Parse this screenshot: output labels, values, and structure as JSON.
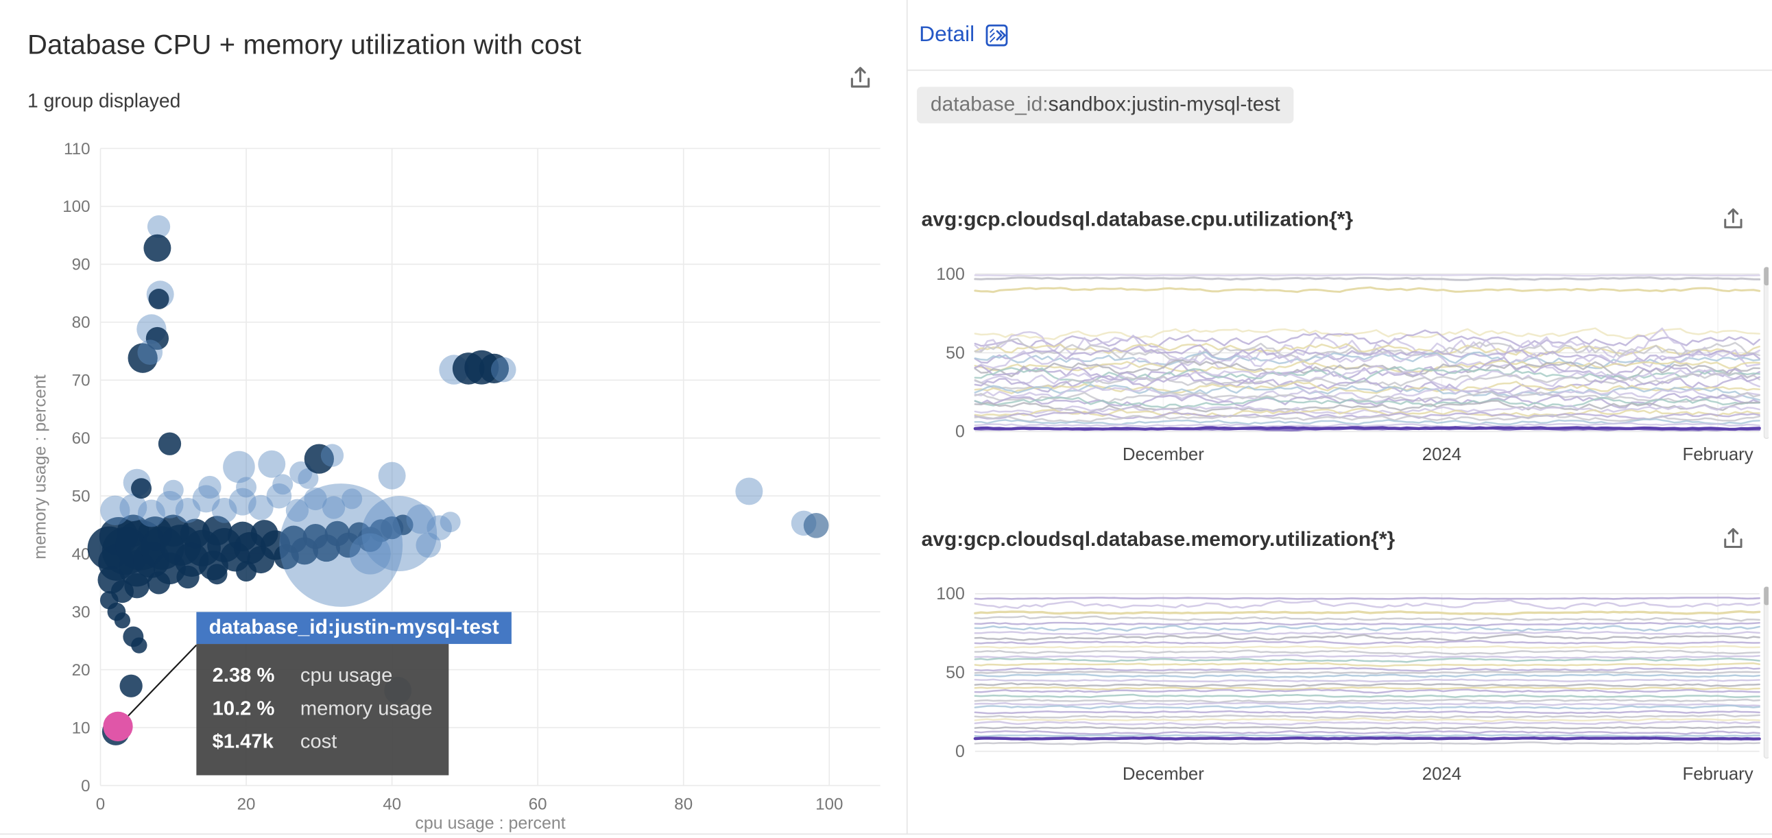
{
  "scatter": {
    "title": "Database CPU + memory utilization with cost",
    "subtitle": "1 group displayed"
  },
  "tooltip": {
    "title": "database_id:justin-mysql-test",
    "rows": [
      {
        "value": "2.38 %",
        "label": "cpu usage"
      },
      {
        "value": "10.2 %",
        "label": "memory usage"
      },
      {
        "value": "$1.47k",
        "label": "cost"
      }
    ]
  },
  "detail": {
    "label": "Detail",
    "tag_key": "database_id:",
    "tag_value": "sandbox:justin-mysql-test"
  },
  "colors": {
    "accent_blue": "#2457c5",
    "tooltip_header": "#4478c4",
    "highlight_pink": "#e056a8",
    "bubble_navy": "#0d3156",
    "bubble_steel": "#5d8cc2",
    "dark_purple_line": "#5b40ad"
  },
  "chart_data": [
    {
      "type": "scatter",
      "title": "Database CPU + memory utilization with cost",
      "xlabel": "cpu usage : percent",
      "ylabel": "memory usage : percent",
      "xlim": [
        0,
        107
      ],
      "ylim": [
        0,
        110
      ],
      "xticks": [
        0,
        20,
        40,
        60,
        80,
        100
      ],
      "yticks": [
        0,
        10,
        20,
        30,
        40,
        50,
        60,
        70,
        80,
        90,
        100,
        110
      ],
      "grid": true,
      "highlight_point": {
        "x": 2.38,
        "y": 10.2,
        "cost": "$1.47k",
        "group": "database_id:justin-mysql-test"
      },
      "palette": {
        "n": "#0d3156",
        "s": "#5d8cc2",
        "d": "#2f5d8f",
        "p": "#e056a8"
      },
      "points": [
        [
          1.2,
          41,
          19,
          "n"
        ],
        [
          2.2,
          38.5,
          16,
          "n"
        ],
        [
          2.5,
          43,
          17,
          "n"
        ],
        [
          3.5,
          40.5,
          21,
          "n"
        ],
        [
          4.5,
          44,
          14,
          "n"
        ],
        [
          5,
          37.5,
          16,
          "n"
        ],
        [
          5.5,
          41.5,
          22,
          "n"
        ],
        [
          7,
          39,
          16,
          "n"
        ],
        [
          7.5,
          43.5,
          15,
          "n"
        ],
        [
          8.5,
          41,
          19,
          "n"
        ],
        [
          9.5,
          37.5,
          14,
          "n"
        ],
        [
          10,
          44,
          14,
          "n"
        ],
        [
          11,
          41.5,
          18,
          "n"
        ],
        [
          12.5,
          39,
          15,
          "n"
        ],
        [
          13,
          43.5,
          13,
          "n"
        ],
        [
          14,
          41,
          16,
          "n"
        ],
        [
          15.5,
          38,
          13,
          "n"
        ],
        [
          16,
          44,
          13,
          "n"
        ],
        [
          17,
          41.5,
          15,
          "n"
        ],
        [
          18.5,
          39.5,
          13,
          "n"
        ],
        [
          19.5,
          43,
          13,
          "n"
        ],
        [
          20.5,
          41,
          14,
          "n"
        ],
        [
          22,
          39,
          12,
          "n"
        ],
        [
          22.5,
          43.5,
          12,
          "n"
        ],
        [
          24,
          41.5,
          13,
          "n"
        ],
        [
          25.5,
          39.5,
          11,
          "n"
        ],
        [
          26.5,
          42.5,
          12,
          "n"
        ],
        [
          28,
          40.5,
          12,
          "n"
        ],
        [
          29.5,
          43,
          11,
          "n"
        ],
        [
          31,
          41,
          12,
          "n"
        ],
        [
          32.5,
          43.5,
          11,
          "n"
        ],
        [
          34,
          41.5,
          11,
          "n"
        ],
        [
          35.5,
          43.5,
          10,
          "n"
        ],
        [
          37,
          42.5,
          11,
          "n"
        ],
        [
          38.5,
          44,
          10,
          "n"
        ],
        [
          40,
          44.5,
          10,
          "n"
        ],
        [
          41.5,
          45,
          9,
          "n"
        ],
        [
          1.5,
          35.5,
          12,
          "n"
        ],
        [
          3,
          33.5,
          10,
          "n"
        ],
        [
          5,
          34.5,
          11,
          "n"
        ],
        [
          8,
          35,
          10,
          "n"
        ],
        [
          12,
          36,
          10,
          "n"
        ],
        [
          16,
          36.5,
          9,
          "n"
        ],
        [
          20,
          37,
          9,
          "n"
        ],
        [
          1.2,
          32,
          8,
          "n"
        ],
        [
          2.2,
          30,
          8,
          "n"
        ],
        [
          3,
          28.5,
          7,
          "n"
        ],
        [
          2,
          47.5,
          13,
          "s"
        ],
        [
          4.5,
          48,
          12,
          "s"
        ],
        [
          7,
          47,
          12,
          "s"
        ],
        [
          9.5,
          48.5,
          12,
          "s"
        ],
        [
          12,
          47.5,
          11,
          "s"
        ],
        [
          14.5,
          49.5,
          12,
          "s"
        ],
        [
          17,
          47.5,
          11,
          "s"
        ],
        [
          19.5,
          49,
          12,
          "s"
        ],
        [
          22,
          48,
          11,
          "s"
        ],
        [
          24.5,
          50,
          11,
          "s"
        ],
        [
          27,
          47.5,
          10,
          "s"
        ],
        [
          29.5,
          49.5,
          10,
          "s"
        ],
        [
          32,
          48,
          10,
          "s"
        ],
        [
          34.5,
          49.5,
          9,
          "s"
        ],
        [
          10,
          51,
          9,
          "s"
        ],
        [
          15,
          51.5,
          10,
          "s"
        ],
        [
          20,
          51.5,
          9,
          "s"
        ],
        [
          25,
          52,
          9,
          "s"
        ],
        [
          28.5,
          53,
          9,
          "s"
        ],
        [
          33,
          41.5,
          54,
          "s"
        ],
        [
          41,
          43.5,
          33,
          "s"
        ],
        [
          37,
          40,
          18,
          "s"
        ],
        [
          44,
          46,
          13,
          "s"
        ],
        [
          46.5,
          44.5,
          11,
          "s"
        ],
        [
          45,
          41.5,
          11,
          "s"
        ],
        [
          48,
          45.5,
          9,
          "s"
        ],
        [
          8,
          96.5,
          10,
          "s"
        ],
        [
          7.8,
          92.8,
          12,
          "n"
        ],
        [
          8.2,
          84.8,
          12,
          "s"
        ],
        [
          8,
          84,
          9,
          "n"
        ],
        [
          7,
          78.8,
          13,
          "s"
        ],
        [
          7.8,
          77.2,
          10,
          "n"
        ],
        [
          5.8,
          73.8,
          13,
          "n"
        ],
        [
          6.8,
          74.8,
          11,
          "s"
        ],
        [
          9.5,
          59,
          10,
          "n"
        ],
        [
          5,
          52.3,
          12,
          "s"
        ],
        [
          5.6,
          51.3,
          9,
          "n"
        ],
        [
          19,
          55,
          14,
          "s"
        ],
        [
          23.5,
          55.5,
          12,
          "s"
        ],
        [
          27.5,
          54,
          10,
          "s"
        ],
        [
          30,
          56.4,
          13,
          "n"
        ],
        [
          31.8,
          57,
          10,
          "s"
        ],
        [
          40,
          53.5,
          12,
          "s"
        ],
        [
          48.5,
          71.8,
          13,
          "s"
        ],
        [
          50.5,
          72,
          14,
          "n"
        ],
        [
          52.3,
          72.2,
          15,
          "n"
        ],
        [
          54,
          72,
          13,
          "n"
        ],
        [
          55.3,
          71.8,
          11,
          "s"
        ],
        [
          89,
          50.8,
          12,
          "s"
        ],
        [
          96.5,
          45.3,
          11,
          "s"
        ],
        [
          98.2,
          44.9,
          11,
          "d"
        ],
        [
          40.8,
          16.4,
          12,
          "d"
        ],
        [
          4.5,
          25.7,
          9,
          "n"
        ],
        [
          5.3,
          24.2,
          7,
          "n"
        ],
        [
          4.2,
          17.2,
          10,
          "n"
        ],
        [
          2.1,
          9.3,
          12,
          "n"
        ],
        [
          2.4,
          10.2,
          13,
          "p"
        ]
      ]
    },
    {
      "type": "line",
      "title": "avg:gcp.cloudsql.database.cpu.utilization{*}",
      "ylim": [
        0,
        100
      ],
      "yticks": [
        0,
        50,
        100
      ],
      "x_labels": [
        {
          "text": "December",
          "pos": 0.24
        },
        {
          "text": "2024",
          "pos": 0.595
        },
        {
          "text": "February",
          "pos": 0.947
        }
      ],
      "series": [
        {
          "b": 99.2,
          "a": 0.3,
          "c": "#d8d2ea",
          "w": 1.5,
          "o": 0.9
        },
        {
          "b": 97,
          "a": 0.7,
          "c": "#c3c3cb",
          "w": 1.8,
          "o": 0.95
        },
        {
          "b": 90,
          "a": 1.2,
          "c": "#e4d9a4",
          "w": 1.8,
          "o": 0.95
        },
        {
          "b": 62,
          "a": 3,
          "c": "#efe7c3",
          "w": 1.5,
          "o": 0.85
        },
        {
          "b": 58,
          "a": 5,
          "c": "#b7abd6",
          "w": 1.5,
          "o": 0.8
        },
        {
          "b": 55,
          "a": 9,
          "c": "#ccc3e3",
          "w": 1.5,
          "o": 0.8
        },
        {
          "b": 52,
          "a": 4,
          "c": "#e4d9a4",
          "w": 1.5,
          "o": 0.8
        },
        {
          "b": 50,
          "a": 6,
          "c": "#c6c6cc",
          "w": 1.5,
          "o": 0.8
        },
        {
          "b": 48,
          "a": 5,
          "c": "#b7abd6",
          "w": 1.5,
          "o": 0.8
        },
        {
          "b": 46,
          "a": 4,
          "c": "#a9c6da",
          "w": 1.5,
          "o": 0.8
        },
        {
          "b": 44,
          "a": 7,
          "c": "#ccc3e3",
          "w": 1.5,
          "o": 0.8
        },
        {
          "b": 42,
          "a": 3,
          "c": "#e4d9a4",
          "w": 1.5,
          "o": 0.8
        },
        {
          "b": 40,
          "a": 5,
          "c": "#b2b2ba",
          "w": 1.5,
          "o": 0.8
        },
        {
          "b": 38,
          "a": 6,
          "c": "#b7abd6",
          "w": 1.5,
          "o": 0.8
        },
        {
          "b": 36,
          "a": 4,
          "c": "#a3c9c3",
          "w": 1.5,
          "o": 0.8
        },
        {
          "b": 34,
          "a": 5,
          "c": "#ccc3e3",
          "w": 1.5,
          "o": 0.8
        },
        {
          "b": 32,
          "a": 4,
          "c": "#c6c6cc",
          "w": 1.5,
          "o": 0.8
        },
        {
          "b": 30,
          "a": 5,
          "c": "#b7abd6",
          "w": 1.5,
          "o": 0.8
        },
        {
          "b": 28,
          "a": 3,
          "c": "#e4d9a4",
          "w": 1.5,
          "o": 0.8
        },
        {
          "b": 26,
          "a": 4,
          "c": "#a9c6da",
          "w": 1.5,
          "o": 0.8
        },
        {
          "b": 24,
          "a": 4,
          "c": "#ccc3e3",
          "w": 1.5,
          "o": 0.8
        },
        {
          "b": 22,
          "a": 3,
          "c": "#c6c6cc",
          "w": 1.5,
          "o": 0.8
        },
        {
          "b": 20,
          "a": 4,
          "c": "#b7abd6",
          "w": 1.5,
          "o": 0.8
        },
        {
          "b": 18,
          "a": 3,
          "c": "#a3c9c3",
          "w": 1.5,
          "o": 0.8
        },
        {
          "b": 16,
          "a": 3,
          "c": "#b2b2ba",
          "w": 1.5,
          "o": 0.8
        },
        {
          "b": 14,
          "a": 2.5,
          "c": "#ccc3e3",
          "w": 1.5,
          "o": 0.8
        },
        {
          "b": 12,
          "a": 2.5,
          "c": "#e4d9a4",
          "w": 1.5,
          "o": 0.8
        },
        {
          "b": 10,
          "a": 2,
          "c": "#b7abd6",
          "w": 1.5,
          "o": 0.8
        },
        {
          "b": 8,
          "a": 2,
          "c": "#c6c6cc",
          "w": 1.5,
          "o": 0.8
        },
        {
          "b": 6,
          "a": 1.5,
          "c": "#a9c6da",
          "w": 1.5,
          "o": 0.8
        },
        {
          "b": 4,
          "a": 1,
          "c": "#ccc3e3",
          "w": 1.5,
          "o": 0.8
        },
        {
          "b": 1.5,
          "a": 0.5,
          "c": "#8d7cc6",
          "w": 2,
          "o": 1
        },
        {
          "b": 2.2,
          "a": 0.6,
          "c": "#5b40ad",
          "w": 2.6,
          "o": 1
        }
      ]
    },
    {
      "type": "line",
      "title": "avg:gcp.cloudsql.database.memory.utilization{*}",
      "ylim": [
        0,
        100
      ],
      "yticks": [
        0,
        50,
        100
      ],
      "x_labels": [
        {
          "text": "December",
          "pos": 0.24
        },
        {
          "text": "2024",
          "pos": 0.595
        },
        {
          "text": "February",
          "pos": 0.947
        }
      ],
      "series": [
        {
          "b": 97,
          "a": 0.4,
          "c": "#b7abd6",
          "w": 1.6,
          "o": 0.9
        },
        {
          "b": 93,
          "a": 2.2,
          "c": "#ccc3e3",
          "w": 1.5,
          "o": 0.85
        },
        {
          "b": 88,
          "a": 0.7,
          "c": "#e4d9a4",
          "w": 2,
          "o": 0.95
        },
        {
          "b": 84,
          "a": 1.4,
          "c": "#c6c6cc",
          "w": 1.5,
          "o": 0.85
        },
        {
          "b": 81,
          "a": 0.8,
          "c": "#b7abd6",
          "w": 1.5,
          "o": 0.85
        },
        {
          "b": 78,
          "a": 1.8,
          "c": "#a9c6da",
          "w": 1.5,
          "o": 0.85
        },
        {
          "b": 75,
          "a": 0.9,
          "c": "#ccc3e3",
          "w": 1.5,
          "o": 0.85
        },
        {
          "b": 72,
          "a": 1.4,
          "c": "#b2b2ba",
          "w": 1.5,
          "o": 0.85
        },
        {
          "b": 69,
          "a": 0.8,
          "c": "#b7abd6",
          "w": 1.5,
          "o": 0.85
        },
        {
          "b": 66,
          "a": 0.7,
          "c": "#efe7c3",
          "w": 1.5,
          "o": 0.85
        },
        {
          "b": 63,
          "a": 0.9,
          "c": "#c6c6cc",
          "w": 1.5,
          "o": 0.85
        },
        {
          "b": 60,
          "a": 0.7,
          "c": "#ccc3e3",
          "w": 1.5,
          "o": 0.85
        },
        {
          "b": 58,
          "a": 0.9,
          "c": "#a3c9c3",
          "w": 1.5,
          "o": 0.85
        },
        {
          "b": 55,
          "a": 0.7,
          "c": "#e4d9a4",
          "w": 1.5,
          "o": 0.85
        },
        {
          "b": 52,
          "a": 0.9,
          "c": "#b7abd6",
          "w": 1.5,
          "o": 0.85
        },
        {
          "b": 50,
          "a": 0.7,
          "c": "#c6c6cc",
          "w": 1.5,
          "o": 0.85
        },
        {
          "b": 48,
          "a": 0.9,
          "c": "#a9c6da",
          "w": 1.5,
          "o": 0.85
        },
        {
          "b": 45,
          "a": 0.7,
          "c": "#ccc3e3",
          "w": 1.5,
          "o": 0.85
        },
        {
          "b": 42,
          "a": 0.9,
          "c": "#b2b2ba",
          "w": 1.5,
          "o": 0.85
        },
        {
          "b": 40,
          "a": 0.7,
          "c": "#e4d9a4",
          "w": 1.5,
          "o": 0.85
        },
        {
          "b": 38,
          "a": 0.9,
          "c": "#b7abd6",
          "w": 1.5,
          "o": 0.85
        },
        {
          "b": 35,
          "a": 0.7,
          "c": "#a3c9c3",
          "w": 1.5,
          "o": 0.85
        },
        {
          "b": 32,
          "a": 0.9,
          "c": "#c6c6cc",
          "w": 1.5,
          "o": 0.85
        },
        {
          "b": 30,
          "a": 0.7,
          "c": "#ccc3e3",
          "w": 1.5,
          "o": 0.85
        },
        {
          "b": 28,
          "a": 0.9,
          "c": "#a9c6da",
          "w": 1.5,
          "o": 0.85
        },
        {
          "b": 25,
          "a": 0.7,
          "c": "#b7abd6",
          "w": 1.5,
          "o": 0.85
        },
        {
          "b": 22,
          "a": 0.9,
          "c": "#c6c6cc",
          "w": 1.5,
          "o": 0.85
        },
        {
          "b": 20,
          "a": 0.7,
          "c": "#efe7c3",
          "w": 1.5,
          "o": 0.85
        },
        {
          "b": 18,
          "a": 0.9,
          "c": "#ccc3e3",
          "w": 1.5,
          "o": 0.85
        },
        {
          "b": 15,
          "a": 0.7,
          "c": "#b2b2ba",
          "w": 1.5,
          "o": 0.85
        },
        {
          "b": 12,
          "a": 0.9,
          "c": "#b7abd6",
          "w": 1.5,
          "o": 0.85
        },
        {
          "b": 10,
          "a": 0.5,
          "c": "#a9c6da",
          "w": 1.5,
          "o": 0.85
        },
        {
          "b": 5,
          "a": 0.5,
          "c": "#c6c6cc",
          "w": 1.5,
          "o": 0.85
        },
        {
          "b": 8,
          "a": 0.4,
          "c": "#5b40ad",
          "w": 2.6,
          "o": 1
        }
      ]
    }
  ]
}
